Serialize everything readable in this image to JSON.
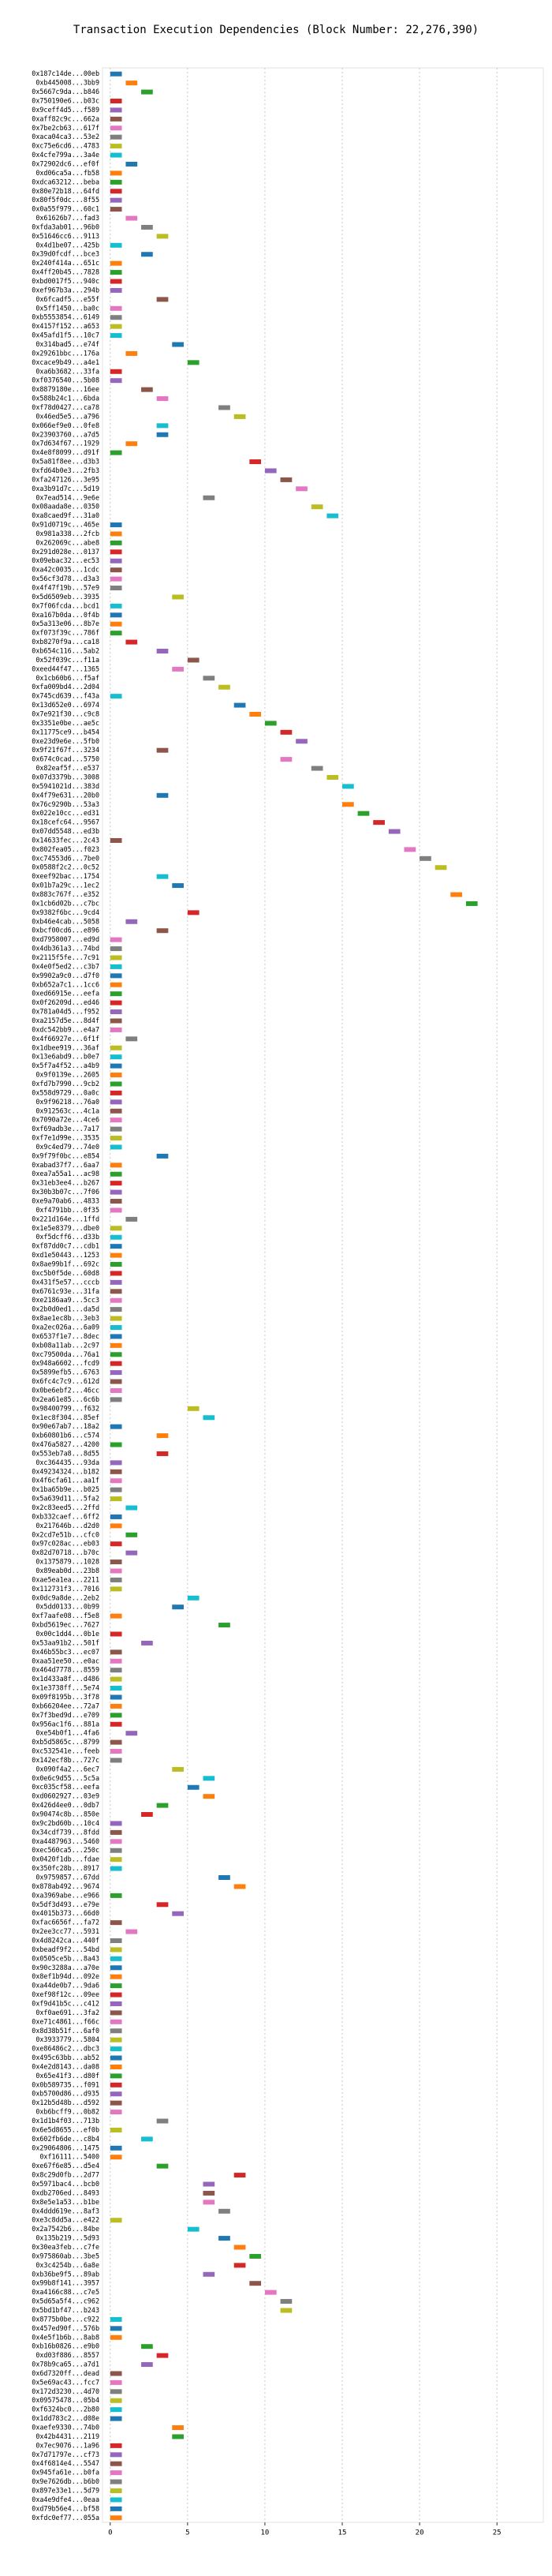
{
  "chart_data": {
    "type": "bar",
    "title": "Transaction Execution Dependencies (Block Number: 22,276,390)",
    "categories": [
      "0x187c14de...00eb",
      "0xb445008...3bb9",
      "0x5667c9da...b846",
      "0x750190e6...b03c",
      "0x9ceff4d5...f589",
      "0xaff82c9c...662a",
      "0x7be2cb63...617f",
      "0xaca04ca3...53e2",
      "0xc75e6cd6...4783",
      "0x4cfe799a...3a4e",
      "0x72902dc6...ef0f",
      "0xd06ca5a...fb58",
      "0xdca63212...beba",
      "0x80e72b18...64fd",
      "0x80f5f0dc...8f55",
      "0x0a55f979...60c1",
      "0x61626b7...fad3",
      "0xfda3ab01...96b0",
      "0x51646cc6...9113",
      "0x4d1be07...425b",
      "0x39d0fcdf...bce3",
      "0x240f414a...651c",
      "0x4ff20b45...7828",
      "0xbd0017f5...940c",
      "0xef967b3a...294b",
      "0x6fcadf5...e55f",
      "0x5ff1450...ba0c",
      "0xb5553854...6149",
      "0x4157f152...a653",
      "0x45afd1f5...10c7",
      "0x314bad5...e74f",
      "0x29261bbc...176a",
      "0xcace9b49...a4e1",
      "0xa6b3682...33fa",
      "0xf0376540...5b08",
      "0x8879180e...16ee",
      "0x588b24c1...6bda",
      "0xf78d0427...ca78",
      "0x46ed5e5...a796",
      "0x066ef9e0...0fe8",
      "0x23903760...a7d5",
      "0x7d634f67...1929",
      "0x4e8f8099...d91f",
      "0x5a81f8ee...d3b3",
      "0xfd64b0e3...2fb3",
      "0xfa247126...3e95",
      "0xa3b91d7c...5d19",
      "0x7ead514...9e6e",
      "0x08aada8e...0350",
      "0xa8caed9f...31a0",
      "0x91d0719c...465e",
      "0x981a338...2fcb",
      "0x262069c...abe8",
      "0x291d028e...0137",
      "0x09ebac32...ec53",
      "0xa42c0035...1cdc",
      "0x56cf3d78...d3a3",
      "0x4f47f19b...57e9",
      "0x5d6509eb...3935",
      "0x7f06fcda...bcd1",
      "0xa167b0da...0f4b",
      "0x5a313e06...8b7e",
      "0xf073f39c...786f",
      "0xb8270f9a...ca18",
      "0xb654c116...5ab2",
      "0x52f039c...f11a",
      "0xeed44f47...1365",
      "0x1cb60b6...f5af",
      "0xfa009bd4...2d04",
      "0x745cd639...f43a",
      "0x13d652e0...6974",
      "0x7e921f30...c9c8",
      "0x3351e0be...ae5c",
      "0x11775ce9...b454",
      "0xe23d9e6e...5fb0",
      "0x9f21f67f...3234",
      "0x674c0cad...5750",
      "0x82eaf5f...e537",
      "0x07d3379b...3008",
      "0x5941021d...383d",
      "0x4f79e631...20b0",
      "0x76c9290b...53a3",
      "0x022e10cc...ed31",
      "0x18cefc64...9567",
      "0x07dd5548...ed3b",
      "0x14633fec...2c43",
      "0x802fea05...f023",
      "0xc74553d6...7be0",
      "0x0588f2c2...0c52",
      "0xeef92bac...1754",
      "0x01b7a29c...1ec2",
      "0x883c767f...e352",
      "0x1cb6d02b...c7bc",
      "0x9382f6bc...9cd4",
      "0xb46e4cab...5058",
      "0xbcf00cd6...e896",
      "0xd7958007...ed9d",
      "0x4db361a3...74bd",
      "0x2115f5fe...7c91",
      "0x4e0f5ed2...c3b7",
      "0x9902a9c0...d7f0",
      "0xb652a7c1...1cc6",
      "0xed66915e...eefa",
      "0x0f26209d...ed46",
      "0x781a04d5...f952",
      "0xa2157d5e...8d4f",
      "0xdc542bb9...e4a7",
      "0x4f66927e...6f1f",
      "0x1dbee919...36af",
      "0x13e6abd9...b0e7",
      "0x5f7a4f52...a4b9",
      "0x9f0139e...2605",
      "0xfd7b7990...9cb2",
      "0x558d9729...0a0c",
      "0x9f96218...76a0",
      "0x912563c...4c1a",
      "0x7090a72e...4ce6",
      "0xf69adb3e...7a17",
      "0xf7e1d99e...3535",
      "0x9c4ed79...74e0",
      "0x9f79f0bc...e854",
      "0xabad37f7...6aa7",
      "0xea7a55a1...ac98",
      "0x31eb3ee4...b267",
      "0x30b3b07c...7f06",
      "0xe9a70ab6...4833",
      "0xf4791bb...0f35",
      "0x221d164e...1ffd",
      "0x1e5e8379...dbe0",
      "0xf5dcff6...d33b",
      "0xf87dd0c7...cdb1",
      "0xd1e50443...1253",
      "0x8ae99b1f...692c",
      "0xc5b0f5de...60d8",
      "0x431f5e57...cccb",
      "0x6761c93e...31fa",
      "0xe2186aa9...5cc3",
      "0x2b0d0ed1...da5d",
      "0x8ae1ec8b...3eb3",
      "0xa2ec026a...6a09",
      "0x6537f1e7...8dec",
      "0xb08a11ab...2c97",
      "0xc79500da...76a1",
      "0x948a6602...fcd9",
      "0x5899efb5...6763",
      "0x6fc4c7c9...612d",
      "0x0be6ebf2...46cc",
      "0x2ea61e85...6c6b",
      "0x98400799...f632",
      "0x1ec8f304...85ef",
      "0x90e67ab7...18a2",
      "0xb60801b6...c574",
      "0x476a5827...4200",
      "0x553eb7a8...8d55",
      "0xc364435...93da",
      "0x49234324...b182",
      "0x4f6cfa61...aa1f",
      "0x1ba65b9e...b025",
      "0x5a639d11...5fa2",
      "0x2c83eed5...2ffd",
      "0xb332caef...6ff2",
      "0x217646b...d2d0",
      "0x2cd7e51b...cfc0",
      "0x97c028ac...eb03",
      "0x82d70718...b70c",
      "0x1375879...1028",
      "0x89eab0d...23b8",
      "0xae5ea1ea...2211",
      "0x112731f3...7016",
      "0x0dc9a8de...2eb2",
      "0x5dd0133...0b99",
      "0xf7aafe08...f5e8",
      "0xbd5619ec...7627",
      "0x00c1dd4...0b1e",
      "0x53aa91b2...501f",
      "0x46b55bc3...ec07",
      "0xaa51ee50...e0ac",
      "0x464d7778...8559",
      "0x1d433a8f...d486",
      "0x1e3738ff...5e74",
      "0x09f8195b...3f78",
      "0xb66204ee...72a7",
      "0x7f3bed9d...e709",
      "0x956ac1f6...881a",
      "0xe54b0f1...4fa6",
      "0xb5d5865c...8799",
      "0xc532541e...feeb",
      "0x142ecf8b...727c",
      "0x090f4a2...6ec7",
      "0x0e6c9d55...5c5a",
      "0xc035cf58...eefa",
      "0xd0602927...03e9",
      "0x426d4ee0...0db7",
      "0x90474c8b...850e",
      "0x9c2bd60b...10c4",
      "0x34cdf739...8fdd",
      "0xa4487963...5460",
      "0xec560ca5...250c",
      "0x0420f1db...fdae",
      "0x350fc28b...8917",
      "0x9759857...67dd",
      "0x878ab492...9674",
      "0xa3969abe...e966",
      "0x5df3d493...e79e",
      "0x4015b373...66d0",
      "0xfac6656f...fa72",
      "0x2ee3cc77...5931",
      "0x4d8242ca...440f",
      "0xbeadf9f2...54bd",
      "0x0505ce5b...8a43",
      "0x90c3288a...a70e",
      "0x8ef1b94d...092e",
      "0xa44de0b7...9da6",
      "0xef98f12c...09ee",
      "0xf9d41b5c...c412",
      "0xf0ae691...3fa2",
      "0xe71c4861...f66c",
      "0x8d38b51f...6af0",
      "0x3933779...5804",
      "0xe86486c2...dbc3",
      "0x495c63bb...ab52",
      "0x4e2d8143...da08",
      "0x65e41f3...d80f",
      "0x0b589735...f091",
      "0xb5700d86...d935",
      "0x12b5d48b...d592",
      "0xb6bcff9...0b82",
      "0x1d1b4f03...713b",
      "0x6e5d8655...ef0b",
      "0x602fb6de...c8b4",
      "0x29064806...1475",
      "0xf16111...5400",
      "0xe67f6e85...d5e4",
      "0x8c29d0fb...2d77",
      "0x5971bac4...bcb0",
      "0xdb2706ed...8493",
      "0x8e5e1a53...b1be",
      "0x4ddd619e...8af3",
      "0xe3c8dd5a...e422",
      "0x2a7542b6...84be",
      "0x135b219...5d93",
      "0x30ea3feb...c7fe",
      "0x975860ab...3be5",
      "0x3c4254b...6a8e",
      "0xb36be9f5...89ab",
      "0x99b8f141...3957",
      "0xa4166c88...c7e5",
      "0x5d65a5f4...c962",
      "0x5bd1bf47...b243",
      "0x8775b0be...c922",
      "0x457ed90f...576b",
      "0x4e5f1b6b...8ab8",
      "0xb16b0826...e9b0",
      "0xd03f886...8557",
      "0x78b9ca65...a7d1",
      "0x6d7320ff...dead",
      "0x5e69ac43...fcc7",
      "0x172d3230...4d70",
      "0x09575478...05b4",
      "0xf6324bc0...2b80",
      "0x1dd783c2...d08e",
      "0xaefe9330...74b0",
      "0x42b4431...2119",
      "0x7ec9076...1a96",
      "0x7d71797e...cf73",
      "0x4f6814e4...5547",
      "0x945fa61e...b0fa",
      "0x9e7626db...b6b0",
      "0x897e33e1...5d79",
      "0xa4e9dfe4...0eaa",
      "0xd79b56e4...bf58",
      "0xfdc0ef77...055a"
    ],
    "values": [
      0,
      1,
      2,
      0,
      0,
      0,
      0,
      0,
      0,
      0,
      1,
      0,
      0,
      0,
      0,
      0,
      1,
      2,
      3,
      0,
      2,
      0,
      0,
      0,
      0,
      3,
      0,
      0,
      0,
      0,
      4,
      1,
      5,
      0,
      0,
      2,
      3,
      7,
      8,
      3,
      3,
      1,
      0,
      9,
      10,
      11,
      12,
      6,
      13,
      14,
      0,
      0,
      0,
      0,
      0,
      0,
      0,
      0,
      4,
      0,
      0,
      0,
      0,
      1,
      3,
      5,
      4,
      6,
      7,
      0,
      8,
      9,
      10,
      11,
      12,
      3,
      11,
      13,
      14,
      15,
      3,
      15,
      16,
      17,
      18,
      0,
      19,
      20,
      21,
      3,
      4,
      22,
      23,
      5,
      1,
      3,
      0,
      0,
      0,
      0,
      0,
      0,
      0,
      0,
      0,
      0,
      0,
      1,
      0,
      0,
      0,
      0,
      0,
      0,
      0,
      0,
      0,
      0,
      0,
      0,
      3,
      0,
      0,
      0,
      0,
      0,
      0,
      1,
      0,
      0,
      0,
      0,
      0,
      0,
      0,
      0,
      0,
      0,
      0,
      0,
      0,
      0,
      0,
      0,
      0,
      0,
      0,
      0,
      5,
      6,
      0,
      3,
      0,
      3,
      0,
      0,
      0,
      0,
      0,
      1,
      0,
      0,
      1,
      0,
      1,
      0,
      0,
      0,
      0,
      5,
      4,
      0,
      7,
      0,
      2,
      0,
      0,
      0,
      0,
      0,
      0,
      0,
      0,
      0,
      1,
      0,
      0,
      0,
      4,
      6,
      5,
      6,
      3,
      2,
      0,
      0,
      0,
      0,
      0,
      0,
      7,
      8,
      0,
      3,
      4,
      0,
      1,
      0,
      0,
      0,
      0,
      0,
      0,
      0,
      0,
      0,
      0,
      0,
      0,
      0,
      0,
      0,
      0,
      0,
      0,
      0,
      0,
      3,
      0,
      2,
      0,
      0,
      3,
      8,
      6,
      6,
      6,
      7,
      0,
      5,
      7,
      8,
      9,
      8,
      6,
      9,
      10,
      11,
      11,
      0,
      0,
      0,
      2,
      3,
      2,
      0,
      0,
      0,
      0,
      0,
      0,
      4,
      4,
      0,
      0,
      0,
      0,
      0,
      0,
      0,
      0,
      0
    ],
    "colors": [
      "#1f77b4",
      "#ff7f0e",
      "#2ca02c",
      "#d62728",
      "#9467bd",
      "#8c564b",
      "#e377c2",
      "#7f7f7f",
      "#bcbd22",
      "#17becf"
    ],
    "xlim": [
      -0.5,
      28
    ],
    "xticks": [
      0,
      5,
      10,
      15,
      20,
      25
    ],
    "grid": true
  }
}
